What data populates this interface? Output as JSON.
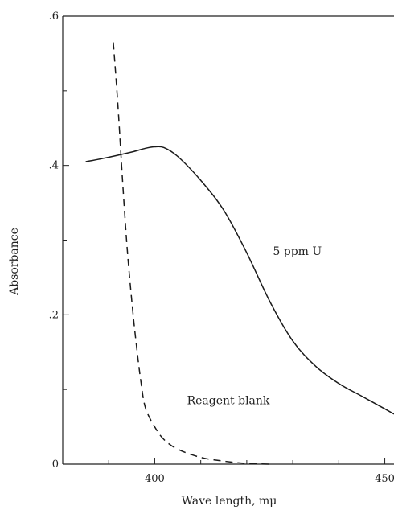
{
  "chart_data": {
    "type": "line",
    "xlabel": "Wave length, mμ",
    "ylabel": "Absorbance",
    "xlim": [
      380,
      452
    ],
    "ylim": [
      0,
      0.6
    ],
    "x_ticks": [
      400,
      450
    ],
    "x_tick_labels": [
      "400",
      "450"
    ],
    "y_ticks": [
      0,
      0.2,
      0.4,
      0.6
    ],
    "y_tick_labels": [
      "0",
      ".2",
      ".4",
      ".6"
    ],
    "grid": false,
    "series": [
      {
        "name": "5 ppm U",
        "style": "solid",
        "points": [
          [
            385,
            0.405
          ],
          [
            390,
            0.411
          ],
          [
            395,
            0.418
          ],
          [
            398,
            0.423
          ],
          [
            400,
            0.425
          ],
          [
            402,
            0.424
          ],
          [
            405,
            0.412
          ],
          [
            410,
            0.38
          ],
          [
            415,
            0.34
          ],
          [
            420,
            0.283
          ],
          [
            425,
            0.218
          ],
          [
            430,
            0.165
          ],
          [
            435,
            0.131
          ],
          [
            440,
            0.108
          ],
          [
            445,
            0.091
          ],
          [
            450,
            0.074
          ],
          [
            452,
            0.067
          ]
        ]
      },
      {
        "name": "Reagent blank",
        "style": "dashed",
        "points": [
          [
            391,
            0.565
          ],
          [
            392,
            0.48
          ],
          [
            393,
            0.38
          ],
          [
            394,
            0.29
          ],
          [
            395,
            0.22
          ],
          [
            396,
            0.16
          ],
          [
            397,
            0.11
          ],
          [
            398,
            0.075
          ],
          [
            400,
            0.05
          ],
          [
            402,
            0.033
          ],
          [
            405,
            0.02
          ],
          [
            410,
            0.009
          ],
          [
            415,
            0.004
          ],
          [
            420,
            0.001
          ],
          [
            425,
            0.0
          ]
        ]
      }
    ],
    "annotations": [
      {
        "text": "5 ppm U",
        "x": 431,
        "y": 0.28
      },
      {
        "text": "Reagent blank",
        "x": 416,
        "y": 0.08
      }
    ]
  }
}
